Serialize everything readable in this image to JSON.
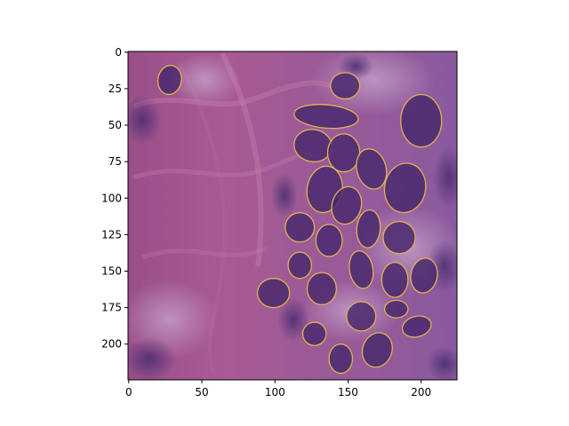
{
  "chart_data": {
    "type": "image",
    "title": "",
    "xlabel": "",
    "ylabel": "",
    "xlim": [
      -0.5,
      224.5
    ],
    "ylim": [
      224.5,
      -0.5
    ],
    "x_ticks": [
      0,
      50,
      100,
      150,
      200
    ],
    "y_ticks": [
      0,
      25,
      50,
      75,
      100,
      125,
      150,
      175,
      200
    ],
    "x_tick_labels": [
      "0",
      "50",
      "100",
      "150",
      "200"
    ],
    "y_tick_labels": [
      "0",
      "25",
      "50",
      "75",
      "100",
      "125",
      "150",
      "175",
      "200"
    ],
    "image": "H&E stained tissue patch with segmented nuclei overlay",
    "colors": {
      "contour": "#e3b24f",
      "tissue_background": "#a0568f",
      "stroma_light": "#b88bbb",
      "nucleus": "#4a2a6e"
    },
    "nuclei": [
      {
        "cx": 28,
        "cy": 19,
        "rx": 8,
        "ry": 10,
        "rot": 10
      },
      {
        "cx": 148,
        "cy": 23,
        "rx": 10,
        "ry": 9,
        "rot": 0
      },
      {
        "cx": 200,
        "cy": 47,
        "rx": 14,
        "ry": 18,
        "rot": 0
      },
      {
        "cx": 135,
        "cy": 44,
        "rx": 22,
        "ry": 8,
        "rot": 5
      },
      {
        "cx": 126,
        "cy": 64,
        "rx": 13,
        "ry": 11,
        "rot": 10
      },
      {
        "cx": 147,
        "cy": 69,
        "rx": 11,
        "ry": 13,
        "rot": 0
      },
      {
        "cx": 166,
        "cy": 80,
        "rx": 10,
        "ry": 14,
        "rot": -15
      },
      {
        "cx": 189,
        "cy": 93,
        "rx": 14,
        "ry": 17,
        "rot": 10
      },
      {
        "cx": 134,
        "cy": 94,
        "rx": 12,
        "ry": 16,
        "rot": 10
      },
      {
        "cx": 149,
        "cy": 105,
        "rx": 10,
        "ry": 13,
        "rot": 15
      },
      {
        "cx": 117,
        "cy": 120,
        "rx": 10,
        "ry": 10,
        "rot": 0
      },
      {
        "cx": 137,
        "cy": 129,
        "rx": 9,
        "ry": 11,
        "rot": 0
      },
      {
        "cx": 164,
        "cy": 121,
        "rx": 8,
        "ry": 13,
        "rot": 5
      },
      {
        "cx": 185,
        "cy": 127,
        "rx": 11,
        "ry": 11,
        "rot": 0
      },
      {
        "cx": 117,
        "cy": 146,
        "rx": 8,
        "ry": 9,
        "rot": 0
      },
      {
        "cx": 159,
        "cy": 149,
        "rx": 8,
        "ry": 13,
        "rot": -10
      },
      {
        "cx": 182,
        "cy": 156,
        "rx": 9,
        "ry": 12,
        "rot": 0
      },
      {
        "cx": 202,
        "cy": 153,
        "rx": 9,
        "ry": 12,
        "rot": 10
      },
      {
        "cx": 99,
        "cy": 165,
        "rx": 11,
        "ry": 10,
        "rot": 0
      },
      {
        "cx": 132,
        "cy": 162,
        "rx": 10,
        "ry": 11,
        "rot": 0
      },
      {
        "cx": 183,
        "cy": 176,
        "rx": 8,
        "ry": 6,
        "rot": 0
      },
      {
        "cx": 159,
        "cy": 181,
        "rx": 10,
        "ry": 10,
        "rot": 0
      },
      {
        "cx": 197,
        "cy": 188,
        "rx": 10,
        "ry": 7,
        "rot": -15
      },
      {
        "cx": 127,
        "cy": 193,
        "rx": 8,
        "ry": 8,
        "rot": 0
      },
      {
        "cx": 170,
        "cy": 204,
        "rx": 10,
        "ry": 12,
        "rot": 20
      },
      {
        "cx": 145,
        "cy": 210,
        "rx": 8,
        "ry": 10,
        "rot": 0
      }
    ]
  }
}
